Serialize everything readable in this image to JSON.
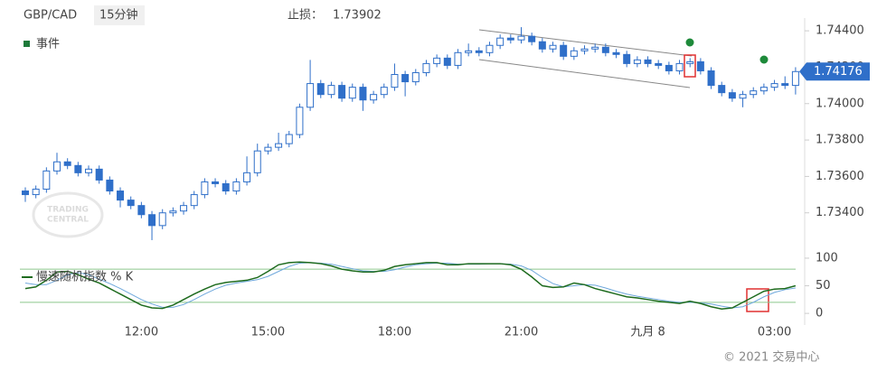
{
  "chart_data": {
    "type": "candlestick",
    "symbol": "GBP/CAD",
    "interval": "15分钟",
    "stop_loss": {
      "label": "止损：",
      "value": 1.73902
    },
    "events_label": "事件",
    "watermark": [
      "TRADING",
      "CENTRAL"
    ],
    "copyright": "© 2021 交易中心",
    "categories": [
      null,
      null,
      null,
      null,
      null,
      null,
      null,
      null,
      null,
      null,
      null,
      "12:00",
      null,
      null,
      null,
      null,
      null,
      null,
      null,
      null,
      null,
      null,
      null,
      "15:00",
      null,
      null,
      null,
      null,
      null,
      null,
      null,
      null,
      null,
      null,
      null,
      "18:00",
      null,
      null,
      null,
      null,
      null,
      null,
      null,
      null,
      null,
      null,
      null,
      "21:00",
      null,
      null,
      null,
      null,
      null,
      null,
      null,
      null,
      null,
      null,
      null,
      "九月 8",
      null,
      null,
      null,
      null,
      null,
      null,
      null,
      null,
      null,
      null,
      null,
      "03:00",
      null,
      null
    ],
    "open": [
      1.7352,
      1.735,
      1.7353,
      1.7363,
      1.7368,
      1.7366,
      1.7362,
      1.7364,
      1.7358,
      1.7352,
      1.7347,
      1.7344,
      1.7339,
      1.7333,
      1.734,
      1.7341,
      1.7344,
      1.735,
      1.7357,
      1.7356,
      1.7352,
      1.7357,
      1.7362,
      1.7374,
      1.7376,
      1.7378,
      1.7383,
      1.7398,
      1.7411,
      1.7405,
      1.741,
      1.7403,
      1.7409,
      1.7402,
      1.7405,
      1.7409,
      1.7416,
      1.7412,
      1.7417,
      1.7422,
      1.7425,
      1.7421,
      1.7428,
      1.7429,
      1.7428,
      1.7432,
      1.7436,
      1.7435,
      1.7437,
      1.7434,
      1.743,
      1.7432,
      1.7426,
      1.7429,
      1.743,
      1.7431,
      1.7428,
      1.7427,
      1.7422,
      1.7424,
      1.7422,
      1.7421,
      1.7418,
      1.7422,
      1.7423,
      1.7418,
      1.741,
      1.7406,
      1.7403,
      1.7405,
      1.7407,
      1.7409,
      1.7411,
      1.741
    ],
    "high": [
      1.7354,
      1.7355,
      1.7365,
      1.7373,
      1.737,
      1.7368,
      1.7366,
      1.7366,
      1.736,
      1.7354,
      1.7349,
      1.7346,
      1.7341,
      1.7342,
      1.7343,
      1.7346,
      1.7352,
      1.7359,
      1.7359,
      1.7358,
      1.7359,
      1.7371,
      1.7378,
      1.7378,
      1.7384,
      1.7385,
      1.74,
      1.7424,
      1.7413,
      1.7412,
      1.7412,
      1.7411,
      1.7411,
      1.7407,
      1.7411,
      1.7422,
      1.7418,
      1.7419,
      1.7424,
      1.7427,
      1.7427,
      1.743,
      1.7433,
      1.7431,
      1.7434,
      1.7438,
      1.7438,
      1.7442,
      1.7439,
      1.7436,
      1.7434,
      1.7434,
      1.7431,
      1.7432,
      1.7433,
      1.7433,
      1.743,
      1.7429,
      1.7426,
      1.7426,
      1.7424,
      1.7423,
      1.7424,
      1.7425,
      1.7425,
      1.742,
      1.7412,
      1.7408,
      1.7407,
      1.7409,
      1.7411,
      1.7413,
      1.7415,
      1.742
    ],
    "low": [
      1.7346,
      1.7348,
      1.7351,
      1.7361,
      1.7364,
      1.736,
      1.736,
      1.7356,
      1.735,
      1.7343,
      1.7342,
      1.7337,
      1.7325,
      1.7331,
      1.7338,
      1.7339,
      1.7342,
      1.7348,
      1.7354,
      1.735,
      1.735,
      1.7355,
      1.736,
      1.7372,
      1.7374,
      1.7376,
      1.7381,
      1.7396,
      1.7403,
      1.7403,
      1.7401,
      1.7401,
      1.7396,
      1.74,
      1.7403,
      1.7407,
      1.7404,
      1.741,
      1.7415,
      1.742,
      1.7419,
      1.7419,
      1.7426,
      1.7426,
      1.7426,
      1.743,
      1.7433,
      1.7433,
      1.7432,
      1.7428,
      1.7428,
      1.7424,
      1.7424,
      1.7427,
      1.7428,
      1.7426,
      1.7425,
      1.742,
      1.742,
      1.742,
      1.7419,
      1.7416,
      1.7416,
      1.742,
      1.7416,
      1.7408,
      1.7404,
      1.7401,
      1.7398,
      1.7403,
      1.7405,
      1.7407,
      1.7408,
      1.7405
    ],
    "close": [
      1.735,
      1.7353,
      1.7363,
      1.7368,
      1.7366,
      1.7362,
      1.7364,
      1.7358,
      1.7352,
      1.7347,
      1.7344,
      1.7339,
      1.7333,
      1.734,
      1.7341,
      1.7344,
      1.735,
      1.7357,
      1.7356,
      1.7352,
      1.7357,
      1.7362,
      1.7374,
      1.7376,
      1.7378,
      1.7383,
      1.7398,
      1.7411,
      1.7405,
      1.741,
      1.7403,
      1.7409,
      1.7402,
      1.7405,
      1.7409,
      1.7416,
      1.7412,
      1.7417,
      1.7422,
      1.7425,
      1.7421,
      1.7428,
      1.7429,
      1.7428,
      1.7432,
      1.7436,
      1.7435,
      1.7437,
      1.7434,
      1.743,
      1.7432,
      1.7426,
      1.7429,
      1.743,
      1.7431,
      1.7428,
      1.7427,
      1.7422,
      1.7424,
      1.7422,
      1.7421,
      1.7418,
      1.7422,
      1.7423,
      1.7418,
      1.741,
      1.7406,
      1.7403,
      1.7405,
      1.7407,
      1.7409,
      1.7411,
      1.741,
      1.74176
    ],
    "up_color": "#ffffff",
    "down_color": "#2f6fc9",
    "edge_color": "#2f6fc9",
    "ylim": [
      1.7323,
      1.7447
    ],
    "yticks": [
      {
        "value": 1.734,
        "label": "1.73400"
      },
      {
        "value": 1.736,
        "label": "1.73600"
      },
      {
        "value": 1.738,
        "label": "1.73800"
      },
      {
        "value": 1.74,
        "label": "1.74000"
      },
      {
        "value": 1.742,
        "label": "1.74200"
      },
      {
        "value": 1.744,
        "label": "1.74400"
      }
    ],
    "oscillator": {
      "series": [
        {
          "name": "慢速随机指数 % K",
          "color": "#1e6b1e",
          "values": [
            45,
            48,
            60,
            75,
            76,
            70,
            62,
            55,
            45,
            35,
            25,
            15,
            10,
            9,
            15,
            25,
            35,
            44,
            52,
            56,
            58,
            60,
            65,
            76,
            88,
            92,
            93,
            92,
            90,
            86,
            80,
            77,
            75,
            75,
            78,
            85,
            88,
            90,
            92,
            92,
            88,
            88,
            90,
            90,
            90,
            90,
            88,
            80,
            66,
            50,
            47,
            48,
            55,
            52,
            45,
            40,
            35,
            30,
            28,
            25,
            22,
            20,
            18,
            22,
            18,
            12,
            8,
            10,
            20,
            30,
            40,
            44,
            45,
            50
          ]
        },
        {
          "color": "#6fa8dc",
          "values": [
            55,
            52,
            52,
            60,
            70,
            74,
            70,
            62,
            54,
            45,
            35,
            25,
            17,
            11,
            11,
            16,
            25,
            35,
            44,
            51,
            55,
            58,
            61,
            67,
            76,
            85,
            91,
            92,
            91,
            89,
            85,
            81,
            77,
            76,
            76,
            79,
            84,
            88,
            90,
            91,
            91,
            89,
            89,
            89,
            90,
            90,
            89,
            86,
            78,
            65,
            54,
            48,
            50,
            52,
            51,
            46,
            40,
            35,
            31,
            28,
            25,
            22,
            20,
            20,
            19,
            17,
            13,
            10,
            12,
            20,
            30,
            38,
            43,
            46
          ]
        }
      ],
      "levels": [
        20,
        80
      ],
      "level_color": "#8cc78c",
      "ylim": [
        -8,
        113
      ],
      "yticks": [
        0,
        50,
        100
      ]
    }
  }
}
